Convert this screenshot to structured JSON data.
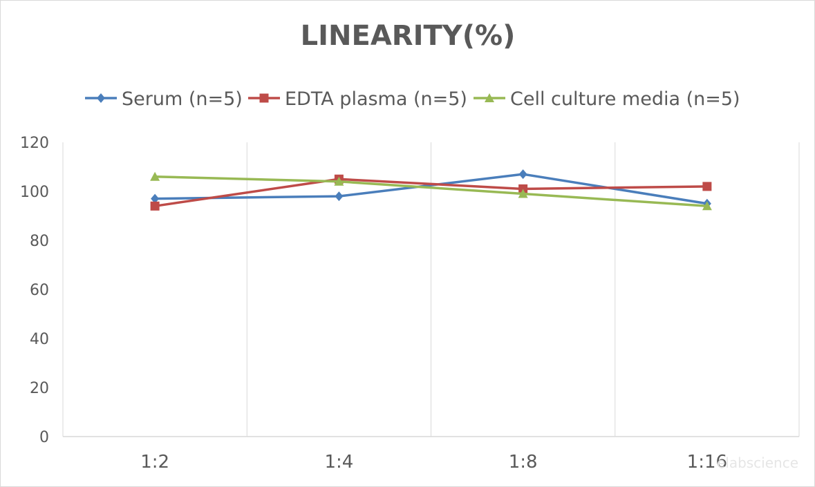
{
  "chart_data": {
    "type": "line",
    "title": "LINEARITY(%)",
    "categories": [
      "1:2",
      "1:4",
      "1:8",
      "1:16"
    ],
    "series": [
      {
        "name": "Serum (n=5)",
        "values": [
          97,
          98,
          107,
          95
        ],
        "color": "#4a7ebb",
        "marker": "diamond"
      },
      {
        "name": "EDTA plasma (n=5)",
        "values": [
          94,
          105,
          101,
          102
        ],
        "color": "#be4b48",
        "marker": "square"
      },
      {
        "name": "Cell culture media (n=5)",
        "values": [
          106,
          104,
          99,
          94
        ],
        "color": "#98b954",
        "marker": "triangle"
      }
    ],
    "ylim": [
      0,
      120
    ],
    "yticks": [
      0,
      20,
      40,
      60,
      80,
      100,
      120
    ],
    "grid": "vertical",
    "legend": "top",
    "xlabel": "",
    "ylabel": ""
  },
  "watermark": "elabscience"
}
